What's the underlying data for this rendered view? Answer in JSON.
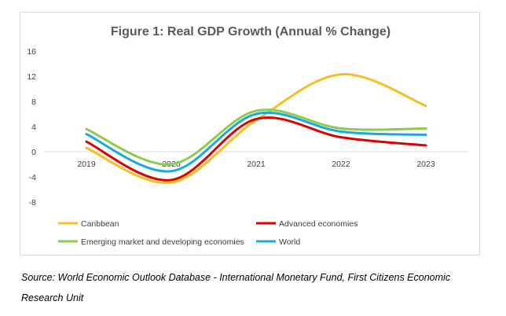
{
  "chart_data": {
    "type": "line",
    "title": "Figure 1: Real GDP Growth (Annual % Change)",
    "categories": [
      "2019",
      "2020",
      "2021",
      "2022",
      "2023"
    ],
    "y_ticks": [
      "16",
      "12",
      "8",
      "4",
      "0",
      "-4",
      "-8"
    ],
    "ylim": [
      -8,
      16
    ],
    "smoothed": true,
    "grid": false,
    "legend_position": "bottom",
    "series": [
      {
        "name": "Caribbean",
        "color": "#f5c022",
        "values": [
          0.6,
          -4.9,
          5.0,
          12.3,
          7.3
        ]
      },
      {
        "name": "Advanced economies",
        "color": "#e00000",
        "values": [
          1.6,
          -4.5,
          5.2,
          2.3,
          1.0
        ]
      },
      {
        "name": "Emerging market and developing economies",
        "color": "#8ccc4e",
        "values": [
          3.6,
          -2.0,
          6.5,
          3.7,
          3.7
        ]
      },
      {
        "name": "World",
        "color": "#1ba9e0",
        "values": [
          2.8,
          -3.1,
          6.0,
          3.2,
          2.7
        ]
      }
    ]
  },
  "source": {
    "line1": "Source: World Economic Outlook Database - International Monetary Fund, First Citizens Economic",
    "line2": "Research Unit"
  }
}
